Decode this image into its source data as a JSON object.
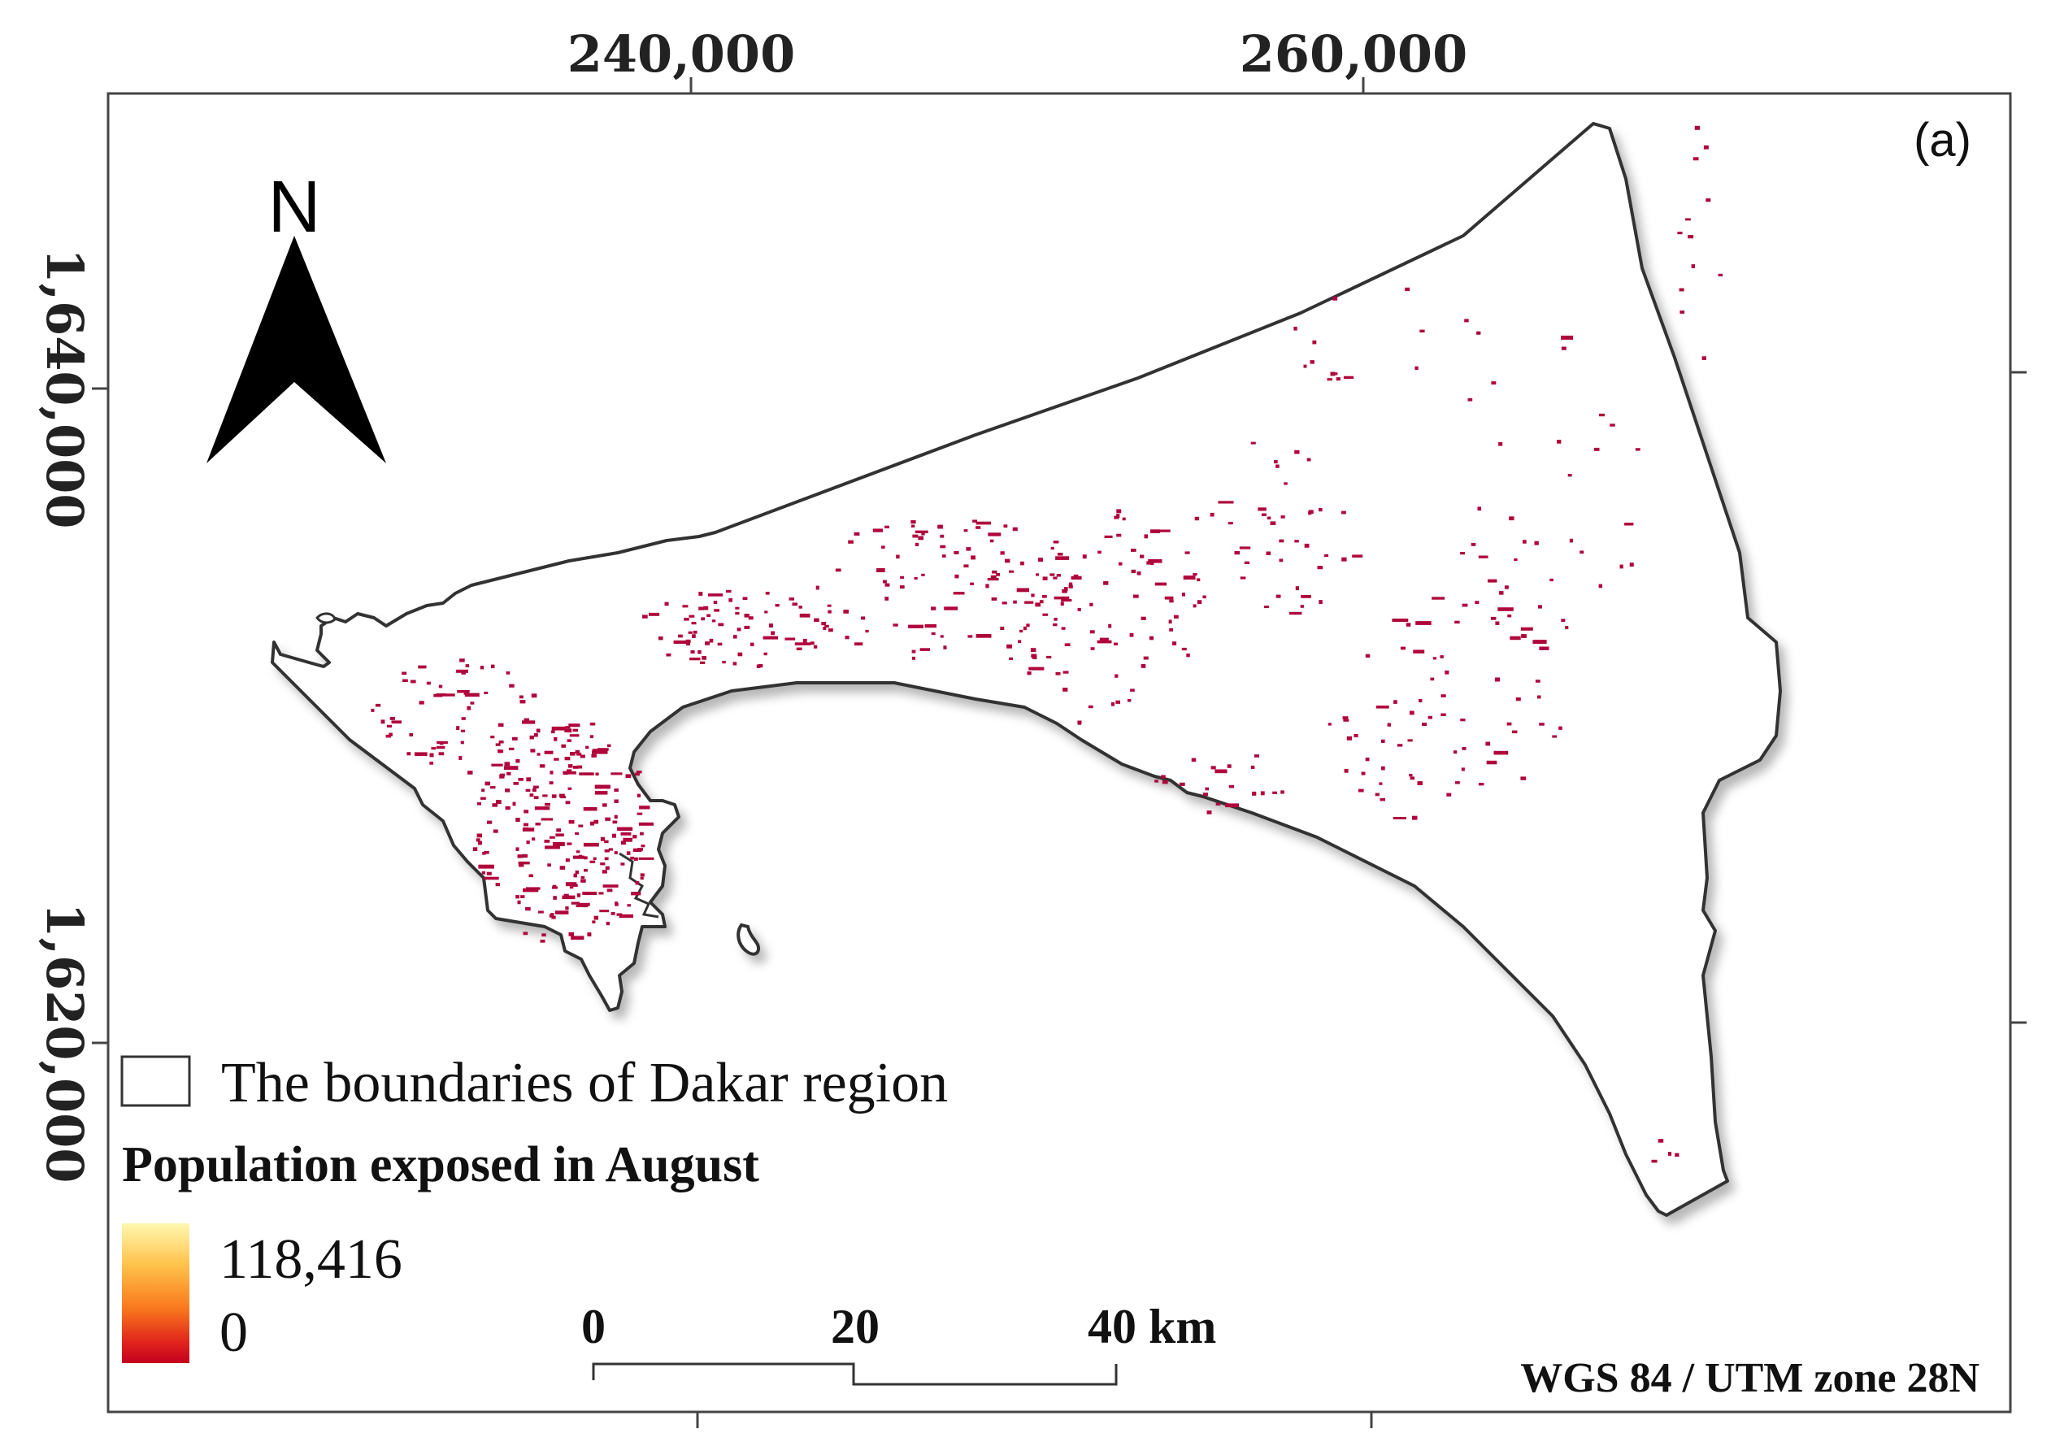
{
  "map": {
    "panel_label": "(a)",
    "grid": {
      "x_labels": [
        "240,000",
        "260,000"
      ],
      "y_labels": [
        "1,640,000",
        "1,620,000"
      ]
    },
    "north_arrow": {
      "letter": "N",
      "icon": "north-arrow-icon"
    },
    "legend": {
      "boundary_label": "The boundaries of Dakar region",
      "title": "Population exposed in August",
      "max_value": "118,416",
      "min_value": "0",
      "ramp_colors": [
        "#fff7b0",
        "#ffc24a",
        "#f97a1e",
        "#e0251c",
        "#c4001e"
      ]
    },
    "scale_bar": {
      "labels": [
        "0",
        "20",
        "40 km"
      ]
    },
    "crs": "WGS 84 / UTM zone 28N",
    "colors": {
      "boundary": "#333333",
      "exposed_population": "#b0063b"
    }
  }
}
